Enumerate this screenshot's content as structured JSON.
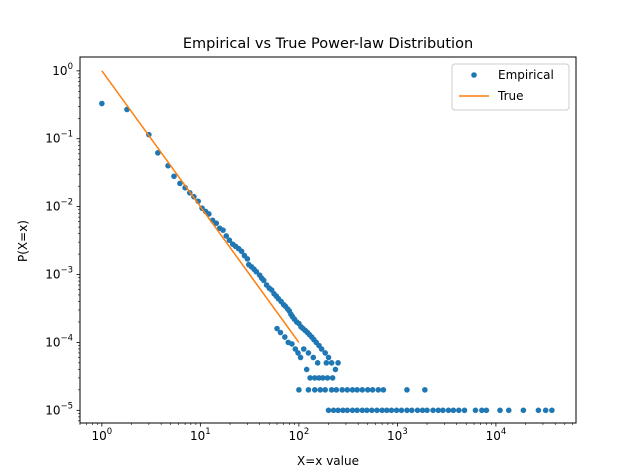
{
  "chart_data": {
    "type": "scatter",
    "title": "Empirical vs True Power-law Distribution",
    "xlabel": "X=x value",
    "ylabel": "P(X=x)",
    "xscale": "log",
    "yscale": "log",
    "xlim": [
      0.6,
      65000
    ],
    "ylim": [
      6.5e-06,
      1.6
    ],
    "xticks": [
      1,
      10,
      100,
      1000,
      10000
    ],
    "yticks": [
      1e-05,
      0.0001,
      0.001,
      0.01,
      0.1,
      1
    ],
    "legend_position": "top-right",
    "grid": false,
    "series": [
      {
        "name": "Empirical",
        "kind": "scatter",
        "color": "#1f77b4",
        "points": [
          [
            1,
            0.33
          ],
          [
            1.8,
            0.27
          ],
          [
            3,
            0.115
          ],
          [
            3.7,
            0.062
          ],
          [
            4.7,
            0.04
          ],
          [
            5.4,
            0.028
          ],
          [
            6.2,
            0.022
          ],
          [
            7,
            0.019
          ],
          [
            7.8,
            0.016
          ],
          [
            8.6,
            0.014
          ],
          [
            9.5,
            0.012
          ],
          [
            10.4,
            0.0095
          ],
          [
            11.3,
            0.0085
          ],
          [
            12.2,
            0.0078
          ],
          [
            13.3,
            0.0063
          ],
          [
            14.5,
            0.0057
          ],
          [
            15.7,
            0.0048
          ],
          [
            17,
            0.0045
          ],
          [
            18.3,
            0.0037
          ],
          [
            19.7,
            0.0032
          ],
          [
            21.3,
            0.0028
          ],
          [
            22.8,
            0.0026
          ],
          [
            24.5,
            0.0024
          ],
          [
            26.2,
            0.0022
          ],
          [
            28,
            0.0019
          ],
          [
            30,
            0.0017
          ],
          [
            31,
            0.0014
          ],
          [
            33,
            0.0013
          ],
          [
            35,
            0.0012
          ],
          [
            37,
            0.0011
          ],
          [
            40,
            0.00098
          ],
          [
            42,
            0.00088
          ],
          [
            44,
            0.00082
          ],
          [
            47,
            0.0007
          ],
          [
            50,
            0.00063
          ],
          [
            53,
            0.00059
          ],
          [
            56,
            0.00052
          ],
          [
            59,
            0.00048
          ],
          [
            62,
            0.00044
          ],
          [
            66,
            0.0004
          ],
          [
            70,
            0.00036
          ],
          [
            73,
            0.00034
          ],
          [
            77,
            0.00031
          ],
          [
            80,
            0.00029
          ],
          [
            83,
            0.00026
          ],
          [
            86,
            0.00024
          ],
          [
            90,
            0.00022
          ],
          [
            95,
            0.0002
          ],
          [
            100,
            0.00019
          ],
          [
            105,
            0.00017
          ],
          [
            110,
            0.00016
          ],
          [
            116,
            0.00015
          ],
          [
            122,
            0.00014
          ],
          [
            128,
            0.00013
          ],
          [
            135,
            0.00012
          ],
          [
            142,
            0.00011
          ],
          [
            150,
            0.0001
          ],
          [
            160,
            9e-05
          ],
          [
            170,
            8e-05
          ],
          [
            185,
            7e-05
          ],
          [
            200,
            6e-05
          ],
          [
            215,
            5e-05
          ],
          [
            235,
            4e-05
          ],
          [
            60,
            0.00016
          ],
          [
            65,
            0.00014
          ],
          [
            72,
            0.00012
          ],
          [
            78,
            0.0001
          ],
          [
            85,
            9.5e-05
          ],
          [
            92,
            8e-05
          ],
          [
            98,
            7e-05
          ],
          [
            104,
            6e-05
          ],
          [
            112,
            8e-05
          ],
          [
            125,
            7e-05
          ],
          [
            140,
            6e-05
          ],
          [
            155,
            5e-05
          ],
          [
            190,
            5e-05
          ],
          [
            250,
            5e-05
          ],
          [
            120,
            4e-05
          ],
          [
            130,
            3e-05
          ],
          [
            145,
            3e-05
          ],
          [
            160,
            3e-05
          ],
          [
            175,
            3e-05
          ],
          [
            195,
            3e-05
          ],
          [
            220,
            3e-05
          ],
          [
            100,
            2e-05
          ],
          [
            125,
            2e-05
          ],
          [
            145,
            2e-05
          ],
          [
            165,
            2e-05
          ],
          [
            185,
            2e-05
          ],
          [
            215,
            2e-05
          ],
          [
            240,
            2e-05
          ],
          [
            275,
            2e-05
          ],
          [
            310,
            2e-05
          ],
          [
            350,
            2e-05
          ],
          [
            390,
            2e-05
          ],
          [
            440,
            2e-05
          ],
          [
            500,
            2e-05
          ],
          [
            560,
            2e-05
          ],
          [
            640,
            2e-05
          ],
          [
            720,
            2e-05
          ],
          [
            1250,
            2e-05
          ],
          [
            1900,
            2e-05
          ],
          [
            200,
            1e-05
          ],
          [
            225,
            1e-05
          ],
          [
            250,
            1e-05
          ],
          [
            280,
            1e-05
          ],
          [
            310,
            1e-05
          ],
          [
            350,
            1e-05
          ],
          [
            390,
            1e-05
          ],
          [
            440,
            1e-05
          ],
          [
            490,
            1e-05
          ],
          [
            550,
            1e-05
          ],
          [
            620,
            1e-05
          ],
          [
            700,
            1e-05
          ],
          [
            780,
            1e-05
          ],
          [
            870,
            1e-05
          ],
          [
            980,
            1e-05
          ],
          [
            1100,
            1e-05
          ],
          [
            1250,
            1e-05
          ],
          [
            1400,
            1e-05
          ],
          [
            1600,
            1e-05
          ],
          [
            1800,
            1e-05
          ],
          [
            2000,
            1e-05
          ],
          [
            2300,
            1e-05
          ],
          [
            2600,
            1e-05
          ],
          [
            2900,
            1e-05
          ],
          [
            3300,
            1e-05
          ],
          [
            3700,
            1e-05
          ],
          [
            4200,
            1e-05
          ],
          [
            4800,
            1e-05
          ],
          [
            6200,
            1e-05
          ],
          [
            7200,
            1e-05
          ],
          [
            8000,
            1e-05
          ],
          [
            11000,
            1e-05
          ],
          [
            13500,
            1e-05
          ],
          [
            19000,
            1e-05
          ],
          [
            27000,
            1e-05
          ],
          [
            32000,
            1e-05
          ],
          [
            37000,
            1e-05
          ]
        ]
      },
      {
        "name": "True",
        "kind": "line",
        "color": "#ff7f0e",
        "points": [
          [
            1,
            1.0
          ],
          [
            100,
            0.0001
          ]
        ]
      }
    ]
  }
}
